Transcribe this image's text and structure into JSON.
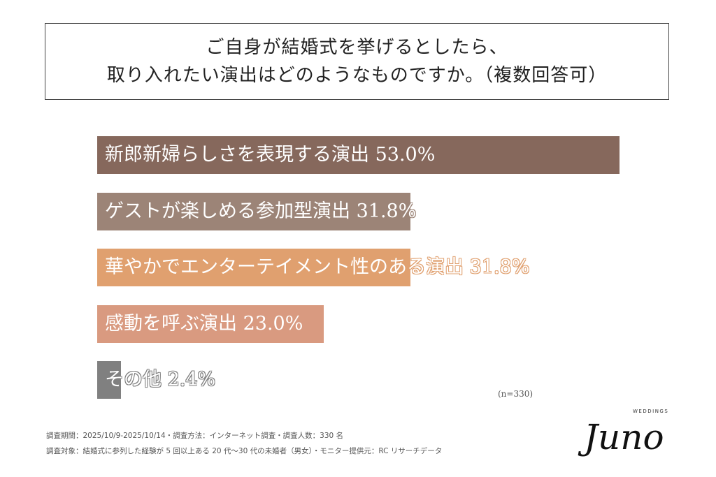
{
  "title": [
    "ご自身が結婚式を挙げるとしたら、",
    "取り入れたい演出はどのようなものですか。（複数回答可）"
  ],
  "chart_data": {
    "type": "bar",
    "orientation": "horizontal",
    "categories": [
      "新郎新婦らしさを表現する演出",
      "ゲストが楽しめる参加型演出",
      "華やかでエンターテイメント性のある演出",
      "感動を呼ぶ演出",
      "その他"
    ],
    "values": [
      53.0,
      31.8,
      31.8,
      23.0,
      2.4
    ],
    "value_labels": [
      "53.0%",
      "31.8%",
      "31.8%",
      "23.0%",
      "2.4%"
    ],
    "colors": [
      "#86685c",
      "#9c8477",
      "#e0a06f",
      "#d99a80",
      "#808080"
    ],
    "unit": "%",
    "grid": false,
    "title": "ご自身が結婚式を挙げるとしたら、取り入れたい演出はどのようなものですか。（複数回答可）"
  },
  "sample_size": "(n=330)",
  "footer": [
    "調査期間：2025/10/9-2025/10/14・調査方法：インターネット調査・調査人数：330 名",
    "調査対象：結婚式に参列した経験が 5 回以上ある 20 代〜30 代の未婚者（男女）・モニター提供元：RC リサーチデータ"
  ],
  "logo": {
    "main": "Juno",
    "sub": "WEDDINGS"
  }
}
